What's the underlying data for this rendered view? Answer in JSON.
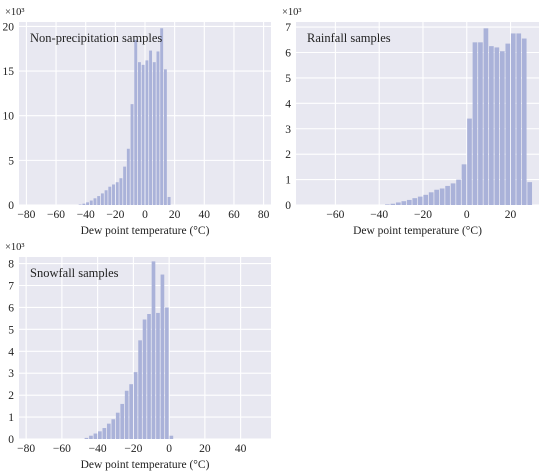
{
  "chart_data": [
    {
      "type": "bar",
      "title": "Non-precipitation samples",
      "xlabel": "Dew point temperature (°C)",
      "ylabel": "",
      "y_multiplier": "×10³",
      "xlim": [
        -85,
        85
      ],
      "ylim": [
        0,
        20.5
      ],
      "xticks": [
        -80,
        -60,
        -40,
        -20,
        0,
        20,
        40,
        60,
        80
      ],
      "yticks": [
        0,
        5,
        10,
        15,
        20
      ],
      "bin_width": 2.5,
      "bin_start": -45,
      "values": [
        0.05,
        0.15,
        0.3,
        0.5,
        0.75,
        1.0,
        1.3,
        1.65,
        2.05,
        2.3,
        2.55,
        3.0,
        4.3,
        6.3,
        11.3,
        18.5,
        16.0,
        15.7,
        16.2,
        17.3,
        16.0,
        17.2,
        19.8,
        15.2,
        0.9
      ]
    },
    {
      "type": "bar",
      "title": "Rainfall samples",
      "xlabel": "Dew point temperature (°C)",
      "ylabel": "",
      "y_multiplier": "×10³",
      "xlim": [
        -78,
        33
      ],
      "ylim": [
        0,
        7.2
      ],
      "xticks": [
        -60,
        -40,
        -20,
        0,
        20
      ],
      "yticks": [
        0,
        1,
        2,
        3,
        4,
        5,
        6,
        7
      ],
      "bin_width": 2.5,
      "bin_start": -37.5,
      "values": [
        0.02,
        0.05,
        0.1,
        0.15,
        0.2,
        0.27,
        0.33,
        0.4,
        0.5,
        0.6,
        0.65,
        0.75,
        0.85,
        1.0,
        1.6,
        3.4,
        6.4,
        6.4,
        6.95,
        6.25,
        6.2,
        6.05,
        6.35,
        6.75,
        6.75,
        6.55,
        0.9
      ]
    },
    {
      "type": "bar",
      "title": "Snowfall samples",
      "xlabel": "Dew point temperature (°C)",
      "ylabel": "",
      "y_multiplier": "×10³",
      "xlim": [
        -84,
        57
      ],
      "ylim": [
        0,
        8.3
      ],
      "xticks": [
        -80,
        -60,
        -40,
        -20,
        0,
        20,
        40
      ],
      "yticks": [
        0,
        1,
        2,
        3,
        4,
        5,
        6,
        7,
        8
      ],
      "bin_width": 2.5,
      "bin_start": -47.5,
      "values": [
        0.05,
        0.15,
        0.25,
        0.35,
        0.5,
        0.7,
        0.9,
        1.2,
        1.6,
        2.2,
        2.5,
        3.05,
        4.5,
        5.45,
        5.7,
        8.1,
        5.75,
        7.5,
        6.0,
        0.15
      ]
    }
  ]
}
